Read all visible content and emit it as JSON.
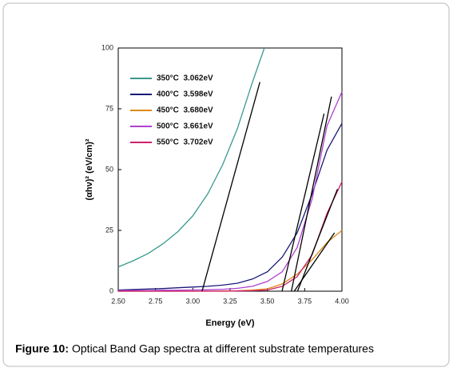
{
  "chart_data": {
    "type": "line",
    "xlabel": "Energy (eV)",
    "ylabel": "(αhν)² (eV/cm)²",
    "caption_label": "Figure 10:",
    "caption": "Optical Band Gap spectra at different substrate temperatures",
    "xlim": [
      2.5,
      4.0
    ],
    "xticks": [
      {
        "value": 2.5,
        "label": "2.50"
      },
      {
        "value": 2.75,
        "label": "2.75"
      },
      {
        "value": 3.0,
        "label": "3.00"
      },
      {
        "value": 3.25,
        "label": "3.25"
      },
      {
        "value": 3.5,
        "label": "3.50"
      },
      {
        "value": 3.75,
        "label": "3.75"
      },
      {
        "value": 4.0,
        "label": "4.00"
      }
    ],
    "ylim": [
      0,
      100
    ],
    "yticks": [
      0,
      25,
      50,
      75,
      100
    ],
    "series": [
      {
        "name": "350°C  3.062eV",
        "color": "#3a9a8e",
        "x": [
          2.5,
          2.6,
          2.7,
          2.8,
          2.9,
          3.0,
          3.1,
          3.2,
          3.3,
          3.4,
          3.48
        ],
        "values": [
          10,
          12.5,
          15.5,
          19.5,
          24.5,
          31,
          40,
          52,
          67,
          86,
          100
        ]
      },
      {
        "name": "400°C  3.598eV",
        "color": "#1a1a7a",
        "x": [
          2.5,
          2.6,
          2.7,
          2.8,
          2.9,
          3.0,
          3.1,
          3.2,
          3.3,
          3.4,
          3.5,
          3.6,
          3.7,
          3.8,
          3.9,
          4.0
        ],
        "values": [
          0.5,
          0.7,
          0.9,
          1.1,
          1.4,
          1.7,
          2.0,
          2.5,
          3.3,
          5,
          8,
          14,
          24,
          40,
          58,
          69
        ]
      },
      {
        "name": "450°C  3.680eV",
        "color": "#e08a1a",
        "x": [
          2.5,
          2.6,
          2.7,
          2.8,
          2.9,
          3.0,
          3.1,
          3.2,
          3.3,
          3.4,
          3.5,
          3.6,
          3.7,
          3.8,
          3.9,
          4.0
        ],
        "values": [
          0,
          0,
          0,
          0,
          0,
          0,
          0,
          0.1,
          0.2,
          0.5,
          1,
          3,
          7,
          13,
          20,
          25
        ]
      },
      {
        "name": "500°C  3.661eV",
        "color": "#b040d0",
        "x": [
          2.5,
          2.6,
          2.7,
          2.8,
          2.9,
          3.0,
          3.1,
          3.2,
          3.3,
          3.4,
          3.5,
          3.6,
          3.7,
          3.8,
          3.9,
          4.0
        ],
        "values": [
          0.3,
          0.3,
          0.3,
          0.4,
          0.4,
          0.5,
          0.6,
          0.8,
          1.2,
          2,
          4,
          8,
          18,
          38,
          68,
          82
        ]
      },
      {
        "name": "550°C  3.702eV",
        "color": "#d0206a",
        "x": [
          2.5,
          2.6,
          2.7,
          2.8,
          2.9,
          3.0,
          3.1,
          3.2,
          3.3,
          3.4,
          3.5,
          3.6,
          3.7,
          3.8,
          3.9,
          4.0
        ],
        "values": [
          0,
          0,
          0,
          0,
          0,
          0,
          0,
          0,
          0.1,
          0.2,
          0.5,
          2,
          6,
          15,
          32,
          45
        ]
      }
    ],
    "fit_lines": [
      {
        "color": "#000000",
        "x": [
          3.062,
          3.45
        ],
        "values": [
          0,
          86
        ]
      },
      {
        "color": "#000000",
        "x": [
          3.598,
          3.88
        ],
        "values": [
          0,
          73
        ]
      },
      {
        "color": "#000000",
        "x": [
          3.661,
          3.93
        ],
        "values": [
          0,
          80
        ]
      },
      {
        "color": "#000000",
        "x": [
          3.68,
          3.95
        ],
        "values": [
          0,
          24
        ]
      },
      {
        "color": "#000000",
        "x": [
          3.702,
          3.97
        ],
        "values": [
          0,
          42
        ]
      }
    ]
  }
}
